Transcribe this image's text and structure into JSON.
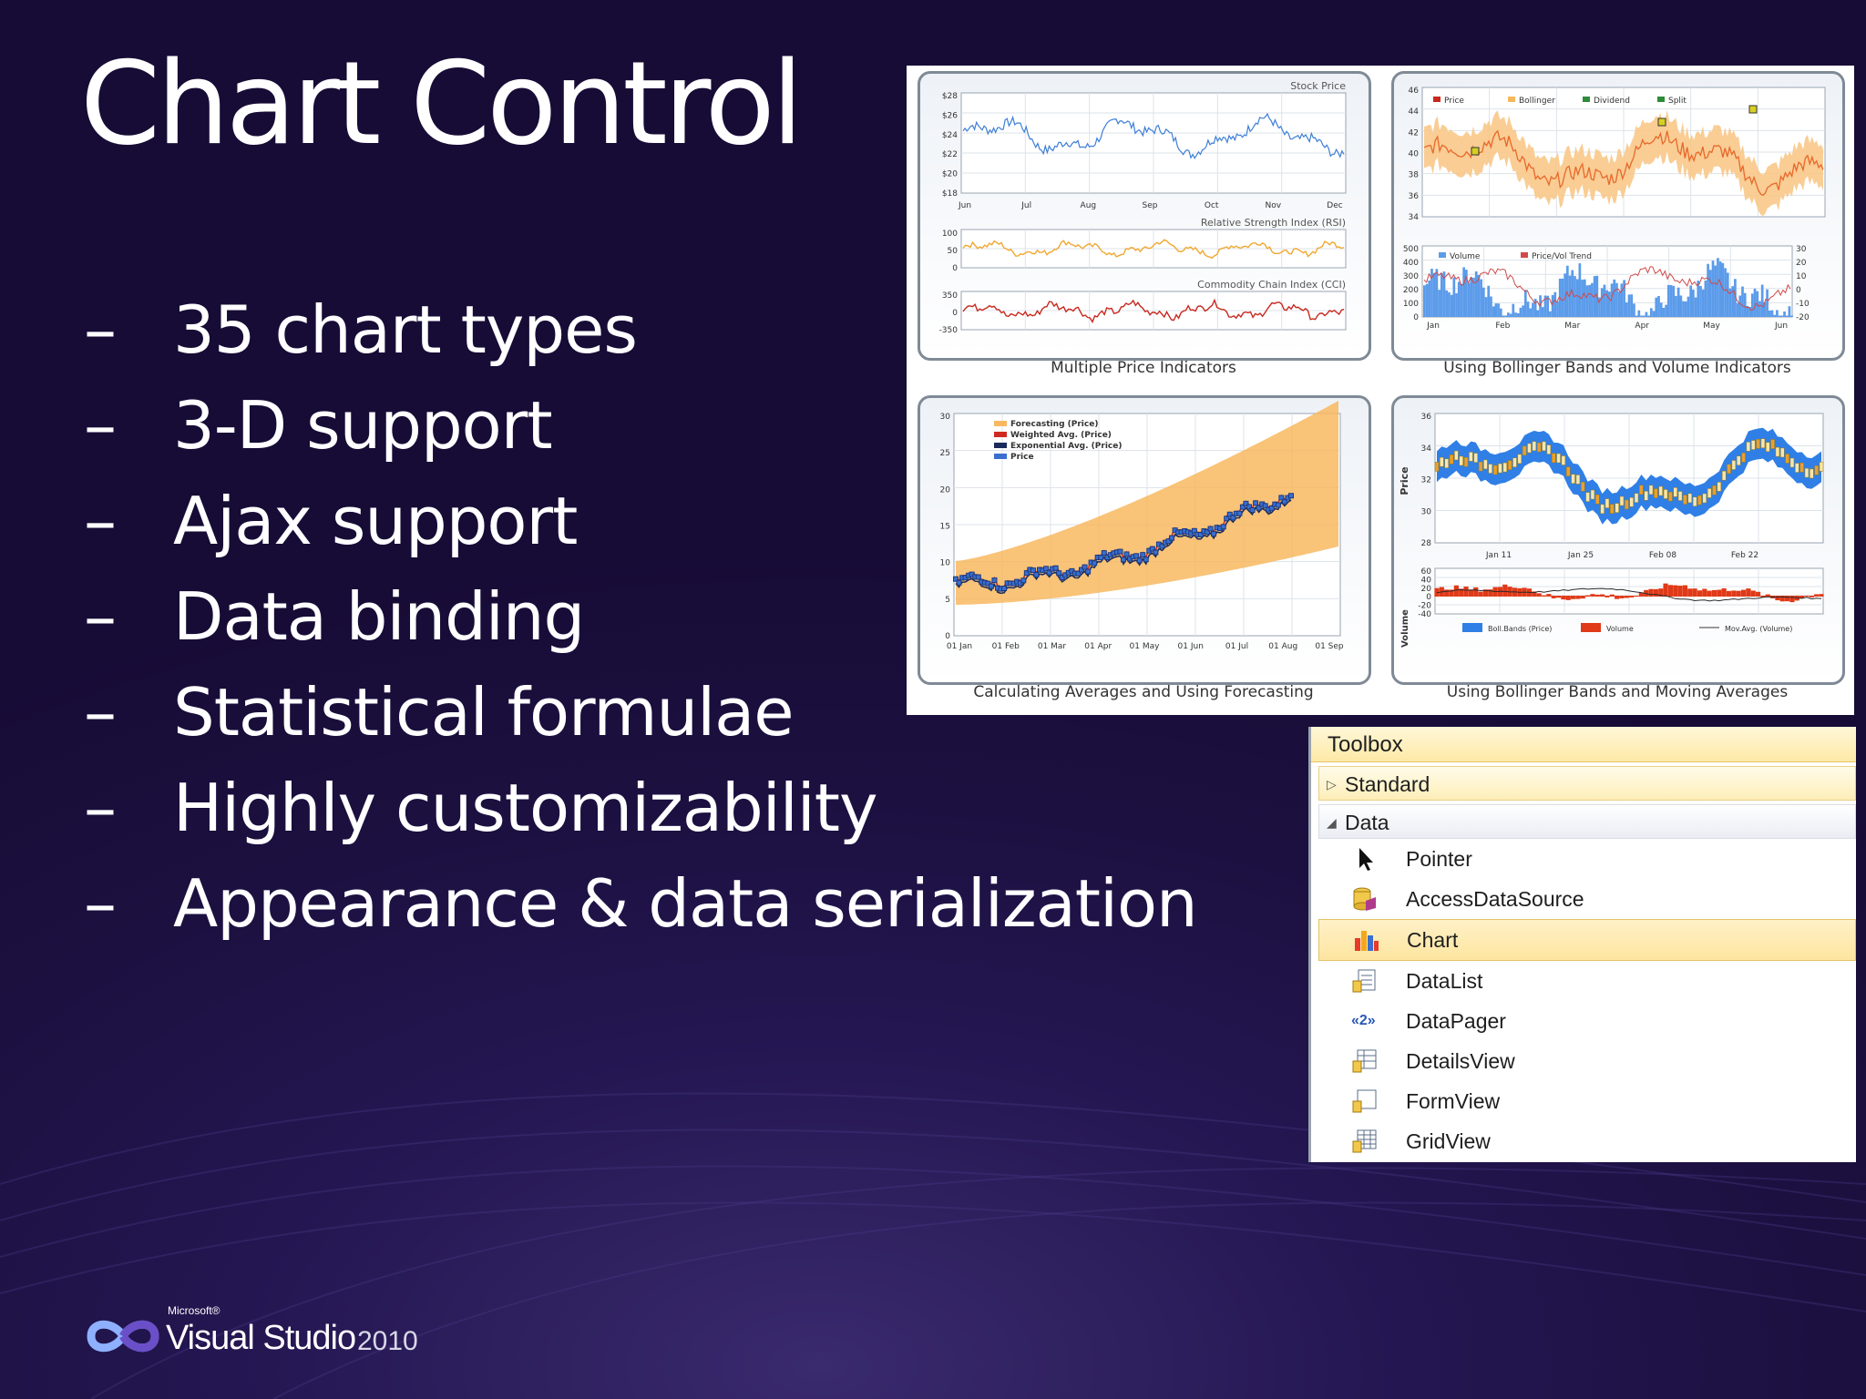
{
  "slide": {
    "title": "Chart Control",
    "bullets": [
      "35 chart types",
      "3-D support",
      "Ajax support",
      "Data binding",
      "Statistical formulae",
      "Highly customizability",
      "Appearance & data serialization"
    ],
    "bullet_marker": "–"
  },
  "gallery": {
    "panels": [
      {
        "caption": "Multiple Price Indicators",
        "titles": [
          "Stock Price",
          "Relative Strength Index (RSI)",
          "Commodity Chain Index (CCI)"
        ],
        "y_ticks": [
          "$28",
          "$26",
          "$24",
          "$22",
          "$20",
          "$18"
        ],
        "rsi_ticks": [
          "100",
          "50",
          "0"
        ],
        "cci_ticks": [
          "350",
          "0",
          "-350"
        ],
        "x_ticks": [
          "Jun",
          "Jul",
          "Aug",
          "Sep",
          "Oct",
          "Nov",
          "Dec"
        ]
      },
      {
        "caption": "Using Bollinger Bands and Volume Indicators",
        "legend_top": [
          "Price",
          "Bollinger",
          "Dividend",
          "Split"
        ],
        "y_ticks": [
          "46",
          "44",
          "42",
          "40",
          "38",
          "36",
          "34"
        ],
        "legend_bottom": [
          "Volume",
          "Price/Vol Trend"
        ],
        "vol_ticks": [
          "500",
          "400",
          "300",
          "200",
          "100",
          "0"
        ],
        "trend_ticks": [
          "30",
          "20",
          "10",
          "0",
          "-10",
          "-20"
        ],
        "x_ticks": [
          "Jan",
          "Feb",
          "Mar",
          "Apr",
          "May",
          "Jun"
        ]
      },
      {
        "caption": "Calculating Averages and Using Forecasting",
        "legend": [
          "Forecasting (Price)",
          "Weighted Avg. (Price)",
          "Exponential Avg. (Price)",
          "Price"
        ],
        "y_ticks": [
          "30",
          "25",
          "20",
          "15",
          "10",
          "5",
          "0"
        ],
        "x_ticks": [
          "01 Jan",
          "01 Feb",
          "01 Mar",
          "01 Apr",
          "01 May",
          "01 Jun",
          "01 Jul",
          "01 Aug",
          "01 Sep"
        ]
      },
      {
        "caption": "Using Bollinger Bands and Moving Averages",
        "y_label": "Price",
        "y_ticks": [
          "36",
          "34",
          "32",
          "30",
          "28"
        ],
        "x_ticks": [
          "Jan 11",
          "Jan 25",
          "Feb 08",
          "Feb 22"
        ],
        "vol_label": "Volume",
        "vol_ticks": [
          "60",
          "40",
          "20",
          "0",
          "-20",
          "-40"
        ],
        "legend": [
          "Boll.Bands (Price)",
          "Volume",
          "Mov.Avg. (Volume)"
        ]
      }
    ]
  },
  "toolbox": {
    "title": "Toolbox",
    "groups": [
      {
        "label": "Standard",
        "expanded": false
      },
      {
        "label": "Data",
        "expanded": true
      }
    ],
    "items": [
      {
        "label": "Pointer",
        "icon": "pointer-icon"
      },
      {
        "label": "AccessDataSource",
        "icon": "access-datasource-icon"
      },
      {
        "label": "Chart",
        "icon": "chart-icon",
        "selected": true
      },
      {
        "label": "DataList",
        "icon": "datalist-icon"
      },
      {
        "label": "DataPager",
        "icon": "datapager-icon"
      },
      {
        "label": "DetailsView",
        "icon": "detailsview-icon"
      },
      {
        "label": "FormView",
        "icon": "formview-icon"
      },
      {
        "label": "GridView",
        "icon": "gridview-icon"
      }
    ],
    "datapager_glyph": "«2»"
  },
  "logo": {
    "microsoft": "Microsoft®",
    "product": "Visual Studio",
    "year": "2010"
  },
  "colors": {
    "background": "#241651",
    "price_blue": "#3d7fd6",
    "rsi_orange": "#f0a830",
    "cci_red": "#c8281e",
    "band_orange": "#f8b860",
    "toolbox_selected": "#fde5a0"
  }
}
